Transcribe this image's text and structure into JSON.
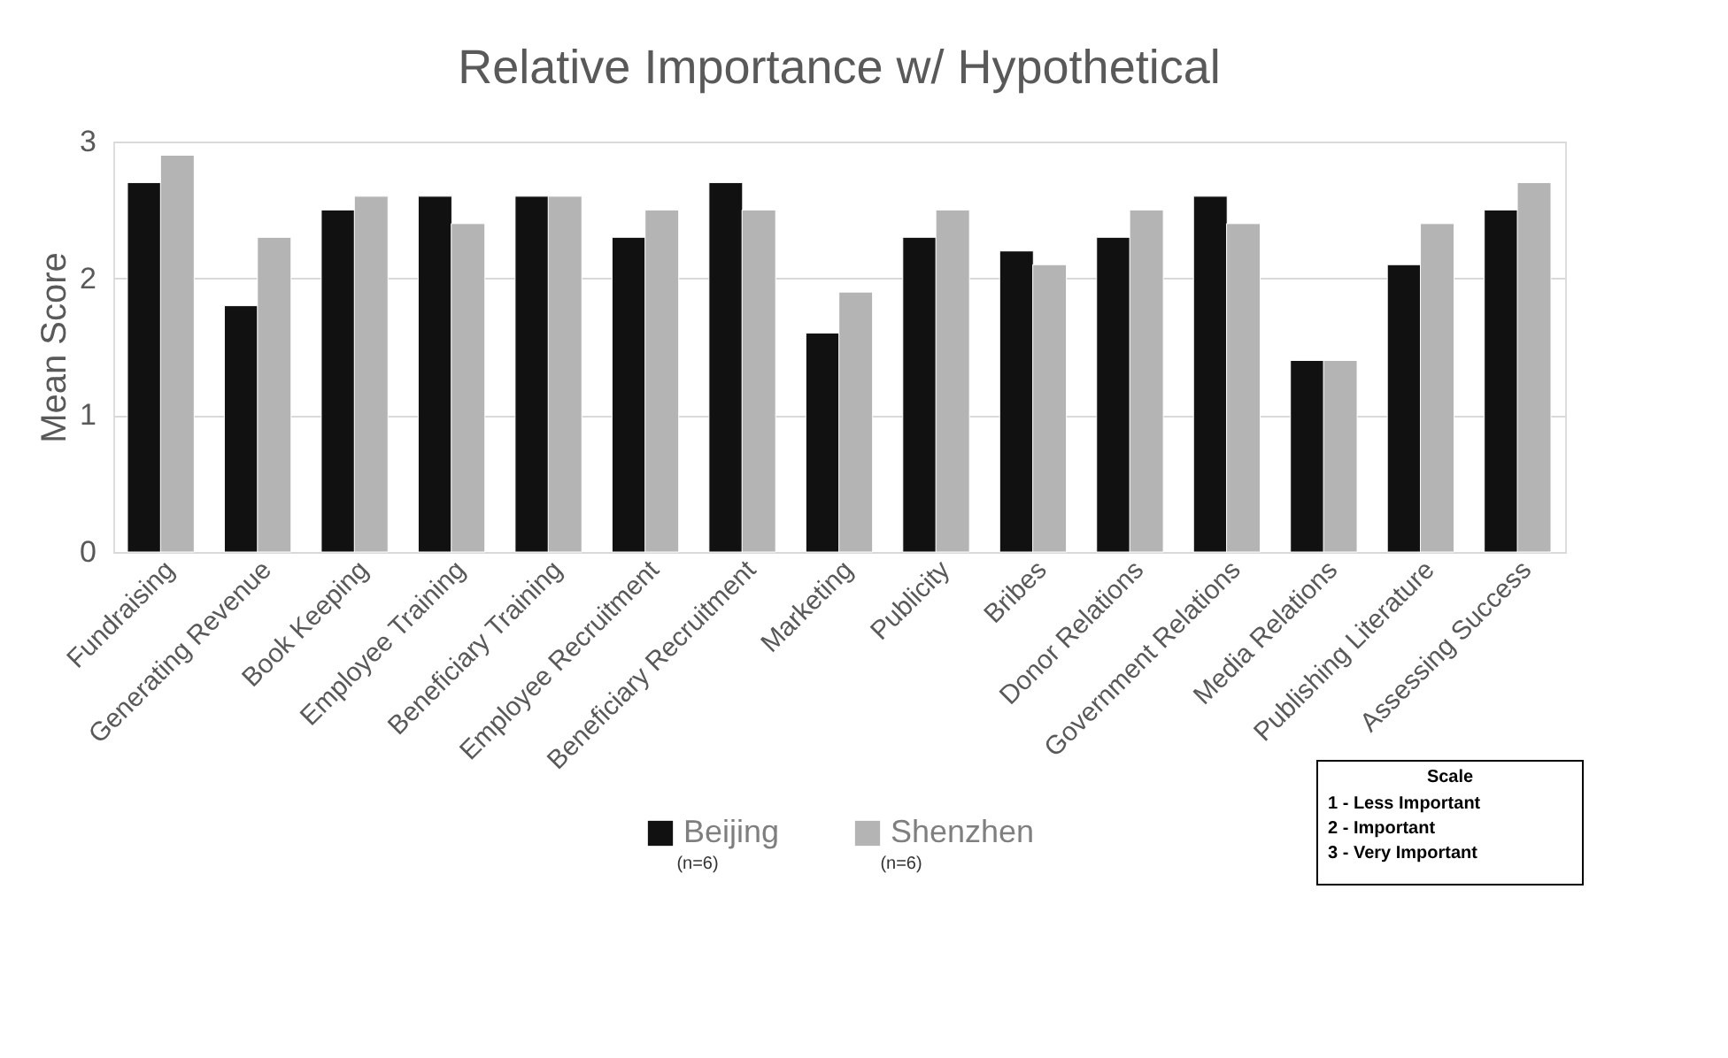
{
  "chart_data": {
    "type": "bar",
    "title": "Relative Importance w/ Hypothetical",
    "ylabel": "Mean Score",
    "categories": [
      "Fundraising",
      "Generating Revenue",
      "Book Keeping",
      "Employee Training",
      "Beneficiary Training",
      "Employee Recruitment",
      "Beneficiary Recruitment",
      "Marketing",
      "Publicity",
      "Bribes",
      "Donor Relations",
      "Government Relations",
      "Media Relations",
      "Publishing Literature",
      "Assessing Success"
    ],
    "series": [
      {
        "name": "Beijing",
        "color": "#111111",
        "values": [
          2.7,
          1.8,
          2.5,
          2.6,
          2.6,
          2.3,
          2.7,
          1.6,
          2.3,
          2.2,
          2.3,
          2.6,
          1.4,
          2.1,
          2.5
        ]
      },
      {
        "name": "Shenzhen",
        "color": "#b4b4b4",
        "values": [
          2.9,
          2.3,
          2.6,
          2.4,
          2.6,
          2.5,
          2.5,
          1.9,
          2.5,
          2.1,
          2.5,
          2.4,
          1.4,
          2.4,
          2.7
        ]
      }
    ],
    "ylim": [
      0,
      3
    ],
    "yticks": [
      0,
      1,
      2,
      3
    ],
    "grid": "y",
    "legend": "bottom",
    "annotations": [
      "(n=6)",
      "(n=6)",
      "Scale",
      "1 - Less Important",
      "2 - Important",
      "3 - Very Important"
    ]
  }
}
